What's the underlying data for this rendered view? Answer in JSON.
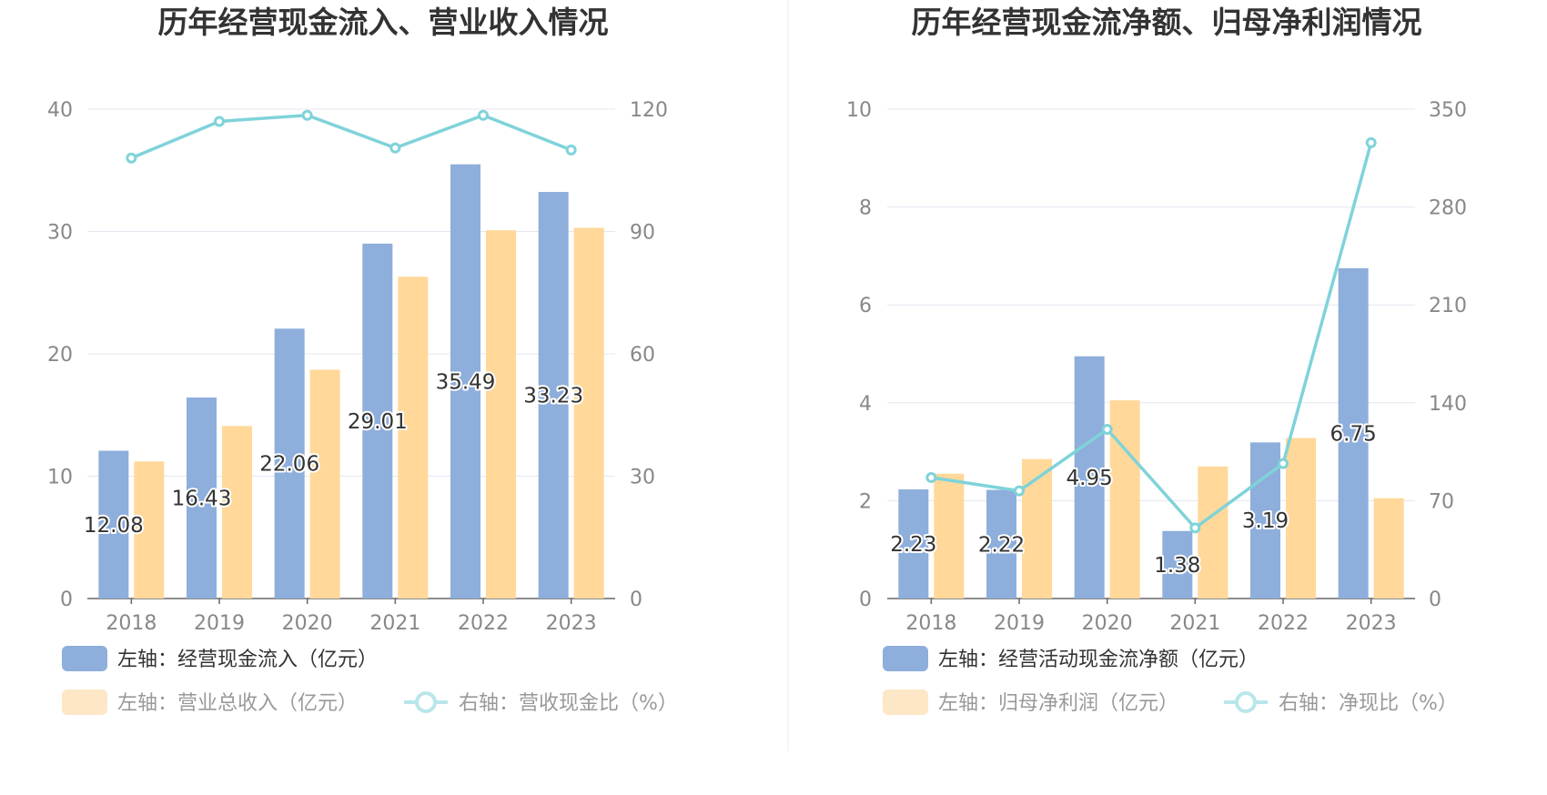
{
  "colors": {
    "primary_bar": "#8eaedb",
    "secondary_bar": "#ffd89a",
    "line": "#7fd3d9",
    "legend_secondary_bar": "#fde7c6",
    "legend_line": "#b9e6ea",
    "grid": "#e3e7f0",
    "axis": "#666666",
    "label_active": "#333333",
    "label_inactive": "#999999",
    "divider": "#eeeeee"
  },
  "chart_data": [
    {
      "type": "bar",
      "title": "历年经营现金流入、营业收入情况",
      "categories": [
        "2018",
        "2019",
        "2020",
        "2021",
        "2022",
        "2023"
      ],
      "left_axis": {
        "ylim": [
          0,
          40
        ],
        "ticks": [
          "0",
          "10",
          "20",
          "30",
          "40"
        ]
      },
      "right_axis": {
        "ylim": [
          0,
          120
        ],
        "ticks": [
          "0",
          "30",
          "60",
          "90",
          "120"
        ]
      },
      "series": [
        {
          "name": "经营现金流入（亿元）",
          "axis": "left",
          "kind": "bar",
          "values": [
            12.08,
            16.43,
            22.06,
            29.01,
            35.49,
            33.23
          ],
          "labels": [
            "12.08",
            "16.43",
            "22.06",
            "29.01",
            "35.49",
            "33.23"
          ]
        },
        {
          "name": "营业总收入（亿元）",
          "axis": "left",
          "kind": "bar",
          "values": [
            11.2,
            14.1,
            18.7,
            26.3,
            30.1,
            30.3
          ]
        },
        {
          "name": "营收现金比（%）",
          "axis": "right",
          "kind": "line",
          "values": [
            108,
            117,
            118.5,
            110.5,
            118.5,
            110
          ]
        }
      ],
      "legend": [
        {
          "prefix": "左轴：",
          "text": "经营现金流入（亿元）",
          "symbol": "bar-primary",
          "active": true
        },
        {
          "prefix": "左轴：",
          "text": "营业总收入（亿元）",
          "symbol": "bar-secondary",
          "active": false
        },
        {
          "prefix": "右轴：",
          "text": "营收现金比（%）",
          "symbol": "line",
          "active": false
        }
      ]
    },
    {
      "type": "bar",
      "title": "历年经营现金流净额、归母净利润情况",
      "categories": [
        "2018",
        "2019",
        "2020",
        "2021",
        "2022",
        "2023"
      ],
      "left_axis": {
        "ylim": [
          0,
          10
        ],
        "ticks": [
          "0",
          "2",
          "4",
          "6",
          "8",
          "10"
        ]
      },
      "right_axis": {
        "ylim": [
          0,
          350
        ],
        "ticks": [
          "0",
          "70",
          "140",
          "210",
          "280",
          "350"
        ]
      },
      "series": [
        {
          "name": "经营活动现金流净额（亿元）",
          "axis": "left",
          "kind": "bar",
          "values": [
            2.23,
            2.22,
            4.95,
            1.38,
            3.19,
            6.75
          ],
          "labels": [
            "2.23",
            "2.22",
            "4.95",
            "1.38",
            "3.19",
            "6.75"
          ]
        },
        {
          "name": "归母净利润（亿元）",
          "axis": "left",
          "kind": "bar",
          "values": [
            2.55,
            2.85,
            4.05,
            2.7,
            3.28,
            2.05
          ]
        },
        {
          "name": "净现比（%）",
          "axis": "right",
          "kind": "line",
          "values": [
            86.5,
            77,
            121,
            50.5,
            96.5,
            326
          ]
        }
      ],
      "legend": [
        {
          "prefix": "左轴：",
          "text": "经营活动现金流净额（亿元）",
          "symbol": "bar-primary",
          "active": true
        },
        {
          "prefix": "左轴：",
          "text": "归母净利润（亿元）",
          "symbol": "bar-secondary",
          "active": false
        },
        {
          "prefix": "右轴：",
          "text": "净现比（%）",
          "symbol": "line",
          "active": false
        }
      ]
    }
  ]
}
